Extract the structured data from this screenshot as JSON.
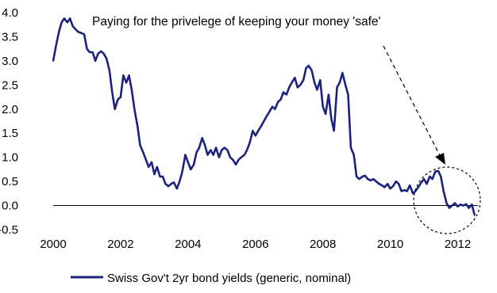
{
  "chart_data": {
    "type": "line",
    "title": "",
    "xlabel": "",
    "ylabel": "",
    "xlim": [
      2000,
      2012.6
    ],
    "ylim": [
      -0.5,
      4.0
    ],
    "x_ticks": [
      "2000",
      "2002",
      "2004",
      "2006",
      "2008",
      "2010",
      "2012"
    ],
    "y_ticks": [
      "4.0",
      "3.5",
      "3.0",
      "2.5",
      "2.0",
      "1.5",
      "1.0",
      "0.5",
      "0.0",
      "-0.5"
    ],
    "grid": false,
    "legend_position": "bottom",
    "annotation": "Paying for the privelege of keeping your  money 'safe'",
    "series": [
      {
        "name": "Swiss Gov't 2yr bond yields (generic, nominal)",
        "color": "#1a237e",
        "points": [
          [
            2000.0,
            3.0
          ],
          [
            2000.08,
            3.3
          ],
          [
            2000.17,
            3.6
          ],
          [
            2000.25,
            3.8
          ],
          [
            2000.33,
            3.88
          ],
          [
            2000.42,
            3.8
          ],
          [
            2000.5,
            3.88
          ],
          [
            2000.58,
            3.72
          ],
          [
            2000.67,
            3.65
          ],
          [
            2000.75,
            3.6
          ],
          [
            2000.83,
            3.58
          ],
          [
            2000.92,
            3.55
          ],
          [
            2001.0,
            3.25
          ],
          [
            2001.08,
            3.18
          ],
          [
            2001.17,
            3.18
          ],
          [
            2001.25,
            3.0
          ],
          [
            2001.33,
            3.15
          ],
          [
            2001.42,
            3.2
          ],
          [
            2001.5,
            3.15
          ],
          [
            2001.58,
            3.05
          ],
          [
            2001.67,
            2.8
          ],
          [
            2001.75,
            2.35
          ],
          [
            2001.83,
            2.0
          ],
          [
            2001.92,
            2.2
          ],
          [
            2002.0,
            2.25
          ],
          [
            2002.08,
            2.7
          ],
          [
            2002.17,
            2.55
          ],
          [
            2002.25,
            2.7
          ],
          [
            2002.33,
            2.4
          ],
          [
            2002.42,
            1.95
          ],
          [
            2002.5,
            1.65
          ],
          [
            2002.58,
            1.25
          ],
          [
            2002.67,
            1.1
          ],
          [
            2002.75,
            0.95
          ],
          [
            2002.83,
            0.8
          ],
          [
            2002.92,
            0.9
          ],
          [
            2003.0,
            0.65
          ],
          [
            2003.08,
            0.8
          ],
          [
            2003.17,
            0.6
          ],
          [
            2003.25,
            0.6
          ],
          [
            2003.33,
            0.45
          ],
          [
            2003.42,
            0.4
          ],
          [
            2003.5,
            0.45
          ],
          [
            2003.58,
            0.48
          ],
          [
            2003.67,
            0.35
          ],
          [
            2003.75,
            0.5
          ],
          [
            2003.83,
            0.7
          ],
          [
            2003.92,
            1.05
          ],
          [
            2004.0,
            0.9
          ],
          [
            2004.08,
            0.75
          ],
          [
            2004.17,
            0.85
          ],
          [
            2004.25,
            1.1
          ],
          [
            2004.33,
            1.2
          ],
          [
            2004.42,
            1.4
          ],
          [
            2004.5,
            1.25
          ],
          [
            2004.58,
            1.05
          ],
          [
            2004.67,
            1.15
          ],
          [
            2004.75,
            1.05
          ],
          [
            2004.83,
            1.2
          ],
          [
            2004.92,
            1.0
          ],
          [
            2005.0,
            1.15
          ],
          [
            2005.08,
            1.2
          ],
          [
            2005.17,
            1.15
          ],
          [
            2005.25,
            1.0
          ],
          [
            2005.33,
            0.95
          ],
          [
            2005.42,
            0.85
          ],
          [
            2005.5,
            0.95
          ],
          [
            2005.58,
            1.0
          ],
          [
            2005.67,
            1.05
          ],
          [
            2005.75,
            1.15
          ],
          [
            2005.83,
            1.3
          ],
          [
            2005.92,
            1.55
          ],
          [
            2006.0,
            1.45
          ],
          [
            2006.08,
            1.55
          ],
          [
            2006.17,
            1.65
          ],
          [
            2006.25,
            1.75
          ],
          [
            2006.33,
            1.85
          ],
          [
            2006.42,
            1.95
          ],
          [
            2006.5,
            2.05
          ],
          [
            2006.58,
            2.0
          ],
          [
            2006.67,
            2.15
          ],
          [
            2006.75,
            2.2
          ],
          [
            2006.83,
            2.35
          ],
          [
            2006.92,
            2.3
          ],
          [
            2007.0,
            2.45
          ],
          [
            2007.08,
            2.55
          ],
          [
            2007.17,
            2.65
          ],
          [
            2007.25,
            2.45
          ],
          [
            2007.33,
            2.5
          ],
          [
            2007.42,
            2.6
          ],
          [
            2007.5,
            2.85
          ],
          [
            2007.58,
            2.9
          ],
          [
            2007.67,
            2.8
          ],
          [
            2007.75,
            2.55
          ],
          [
            2007.83,
            2.4
          ],
          [
            2007.92,
            2.6
          ],
          [
            2008.0,
            2.05
          ],
          [
            2008.08,
            1.9
          ],
          [
            2008.17,
            2.3
          ],
          [
            2008.25,
            1.8
          ],
          [
            2008.33,
            1.55
          ],
          [
            2008.42,
            2.45
          ],
          [
            2008.5,
            2.55
          ],
          [
            2008.58,
            2.75
          ],
          [
            2008.67,
            2.5
          ],
          [
            2008.75,
            2.3
          ],
          [
            2008.83,
            1.2
          ],
          [
            2008.92,
            1.05
          ],
          [
            2009.0,
            0.6
          ],
          [
            2009.08,
            0.55
          ],
          [
            2009.17,
            0.6
          ],
          [
            2009.25,
            0.62
          ],
          [
            2009.33,
            0.55
          ],
          [
            2009.42,
            0.52
          ],
          [
            2009.5,
            0.55
          ],
          [
            2009.58,
            0.5
          ],
          [
            2009.67,
            0.45
          ],
          [
            2009.75,
            0.42
          ],
          [
            2009.83,
            0.38
          ],
          [
            2009.92,
            0.45
          ],
          [
            2010.0,
            0.35
          ],
          [
            2010.08,
            0.4
          ],
          [
            2010.17,
            0.5
          ],
          [
            2010.25,
            0.45
          ],
          [
            2010.33,
            0.3
          ],
          [
            2010.42,
            0.32
          ],
          [
            2010.5,
            0.3
          ],
          [
            2010.58,
            0.42
          ],
          [
            2010.67,
            0.25
          ],
          [
            2010.75,
            0.3
          ],
          [
            2010.83,
            0.38
          ],
          [
            2010.92,
            0.48
          ],
          [
            2011.0,
            0.55
          ],
          [
            2011.08,
            0.45
          ],
          [
            2011.17,
            0.6
          ],
          [
            2011.25,
            0.55
          ],
          [
            2011.33,
            0.7
          ],
          [
            2011.42,
            0.72
          ],
          [
            2011.5,
            0.6
          ],
          [
            2011.58,
            0.3
          ],
          [
            2011.67,
            0.05
          ],
          [
            2011.75,
            -0.05
          ],
          [
            2011.83,
            0.0
          ],
          [
            2011.92,
            0.05
          ],
          [
            2012.0,
            -0.02
          ],
          [
            2012.08,
            0.02
          ],
          [
            2012.17,
            0.0
          ],
          [
            2012.25,
            0.03
          ],
          [
            2012.33,
            -0.05
          ],
          [
            2012.42,
            0.02
          ],
          [
            2012.5,
            -0.2
          ]
        ]
      }
    ]
  }
}
